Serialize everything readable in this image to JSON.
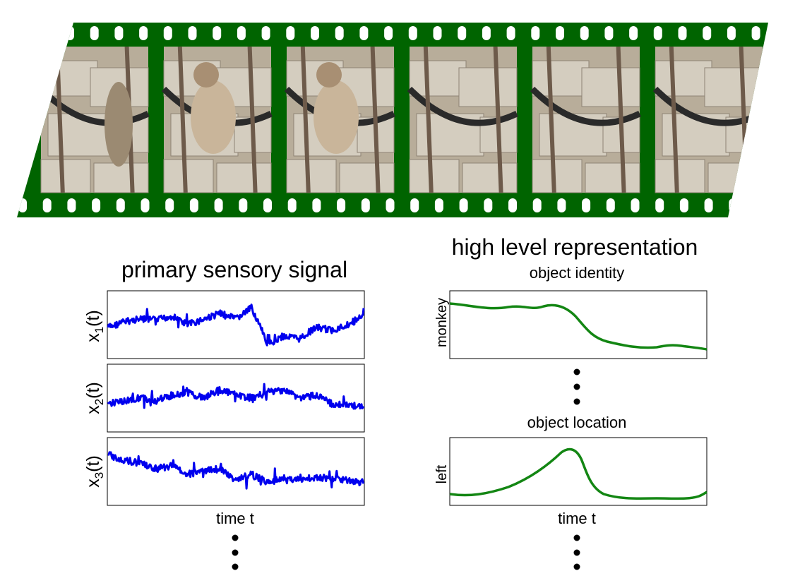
{
  "colors": {
    "film_green": "#006400",
    "sensory_line": "#0000ee",
    "high_level_line": "#138613",
    "frame_background": "#b8ad9a"
  },
  "filmstrip": {
    "frame_count": 6,
    "frame_content": "monkey-climbing-ropes-photo"
  },
  "left_panel": {
    "title": "primary sensory signal",
    "x_label": "time t",
    "plots": [
      {
        "ylabel_main": "x",
        "ylabel_sub": "1",
        "ylabel_tail": "(t)"
      },
      {
        "ylabel_main": "x",
        "ylabel_sub": "2",
        "ylabel_tail": "(t)"
      },
      {
        "ylabel_main": "x",
        "ylabel_sub": "3",
        "ylabel_tail": "(t)"
      }
    ]
  },
  "right_panel": {
    "title": "high level representation",
    "x_label": "time t",
    "plots": [
      {
        "caption": "object identity",
        "ylabel": "monkey"
      },
      {
        "caption": "object location",
        "ylabel": "left"
      }
    ]
  }
}
